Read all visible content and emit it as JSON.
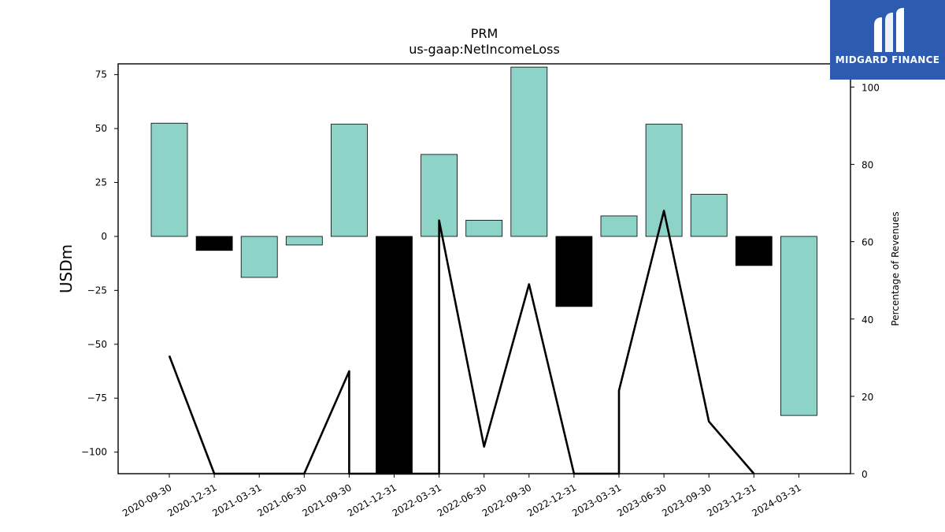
{
  "chart_data": {
    "type": "bar",
    "title": "PRM",
    "subtitle": "us-gaap:NetIncomeLoss",
    "ylabel": "USDm",
    "y2label": "Percentage of Revenues",
    "ylim": [
      -110,
      80
    ],
    "y2lim": [
      0,
      106
    ],
    "yticks": [
      75,
      50,
      25,
      0,
      -25,
      -50,
      -75,
      -100
    ],
    "y2ticks": [
      0,
      20,
      40,
      60,
      80,
      100
    ],
    "categories": [
      "2020-09-30",
      "2020-12-31",
      "2021-03-31",
      "2021-06-30",
      "2021-09-30",
      "2021-12-31",
      "2022-03-31",
      "2022-06-30",
      "2022-09-30",
      "2022-12-31",
      "2023-03-31",
      "2023-06-30",
      "2023-09-30",
      "2023-12-31",
      "2024-03-31"
    ],
    "series": [
      {
        "values": [
          52.5,
          -6.5,
          -19,
          -4,
          52,
          -110,
          38,
          7.5,
          78.5,
          -32.5,
          9.5,
          52,
          19.5,
          -13.5,
          -83
        ],
        "bar_colors": [
          "#8dd3c7",
          "#000000",
          "#8dd3c7",
          "#8dd3c7",
          "#8dd3c7",
          "#000000",
          "#8dd3c7",
          "#8dd3c7",
          "#8dd3c7",
          "#000000",
          "#8dd3c7",
          "#8dd3c7",
          "#8dd3c7",
          "#000000",
          "#8dd3c7"
        ]
      },
      {
        "axis": "right",
        "type": "line",
        "color": "#000000",
        "points": [
          [
            "2020-09-30",
            30.5
          ],
          [
            "2020-12-31",
            0
          ],
          [
            "2021-06-30",
            0
          ],
          [
            "2021-09-30",
            26.5
          ],
          [
            "2021-09-30",
            0
          ],
          [
            "2022-03-31",
            0
          ],
          [
            "2022-03-31",
            65.5
          ],
          [
            "2022-06-30",
            7
          ],
          [
            "2022-09-30",
            49
          ],
          [
            "2022-12-31",
            0
          ],
          [
            "2023-03-31",
            0
          ],
          [
            "2023-03-31",
            21.5
          ],
          [
            "2023-06-30",
            68
          ],
          [
            "2023-09-30",
            13.5
          ],
          [
            "2023-12-31",
            0
          ]
        ]
      }
    ],
    "grid": false
  },
  "logo": {
    "text": "MIDGARD FINANCE",
    "bg_color": "#2d5bb0"
  }
}
